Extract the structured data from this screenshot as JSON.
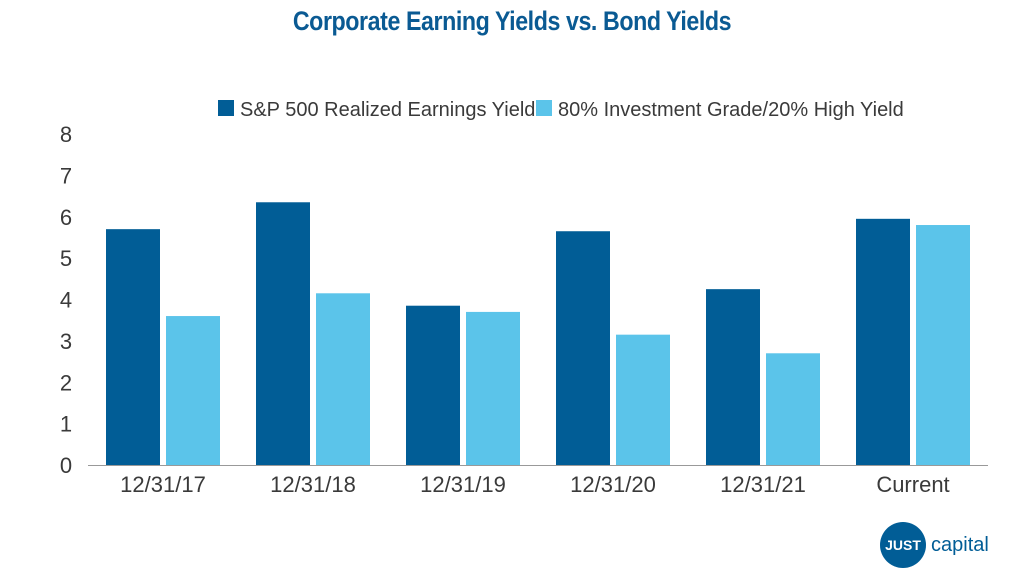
{
  "colors": {
    "title": "#0a5a93",
    "series1": "#015d96",
    "series2": "#5bc4ea",
    "axis": "#999999",
    "logo": "#015d96"
  },
  "chart_data": {
    "type": "bar",
    "title": "Corporate Earning Yields vs. Bond Yields",
    "xlabel": "",
    "ylabel": "",
    "categories": [
      "12/31/17",
      "12/31/18",
      "12/31/19",
      "12/31/20",
      "12/31/21",
      "Current"
    ],
    "series": [
      {
        "name": "S&P 500 Realized Earnings Yield",
        "values": [
          5.7,
          6.35,
          3.85,
          5.65,
          4.25,
          5.95
        ]
      },
      {
        "name": "80% Investment Grade/20% High Yield",
        "values": [
          3.6,
          4.15,
          3.7,
          3.15,
          2.7,
          5.8
        ]
      }
    ],
    "ylim": [
      0,
      8
    ],
    "yticks": [
      0,
      1,
      2,
      3,
      4,
      5,
      6,
      7,
      8
    ],
    "grid": false,
    "legend": "top-center"
  },
  "logo": {
    "mark": "JUST",
    "text": "capital"
  }
}
